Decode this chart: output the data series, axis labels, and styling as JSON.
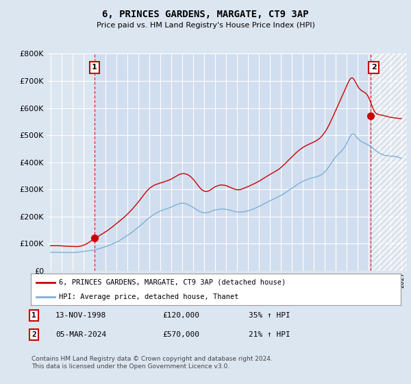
{
  "title": "6, PRINCES GARDENS, MARGATE, CT9 3AP",
  "subtitle": "Price paid vs. HM Land Registry's House Price Index (HPI)",
  "bg_color": "#dce6f1",
  "grid_color": "#ffffff",
  "hpi_color": "#7ab0d9",
  "price_color": "#cc0000",
  "highlight_color": "#c8d8ee",
  "hatch_color": "#c0c8d0",
  "ylim": [
    0,
    800000
  ],
  "yticks": [
    0,
    100000,
    200000,
    300000,
    400000,
    500000,
    600000,
    700000,
    800000
  ],
  "xlim_start": 1994.7,
  "xlim_end": 2027.5,
  "t1_x": 1999.0,
  "t1_y": 120000,
  "t2_x": 2024.17,
  "t2_y": 570000,
  "transaction1_date": "13-NOV-1998",
  "transaction1_price": 120000,
  "transaction1_hpi": "35% ↑ HPI",
  "transaction2_date": "05-MAR-2024",
  "transaction2_price": 570000,
  "transaction2_hpi": "21% ↑ HPI",
  "legend_label1": "6, PRINCES GARDENS, MARGATE, CT9 3AP (detached house)",
  "legend_label2": "HPI: Average price, detached house, Thanet",
  "footer": "Contains HM Land Registry data © Crown copyright and database right 2024.\nThis data is licensed under the Open Government Licence v3.0."
}
